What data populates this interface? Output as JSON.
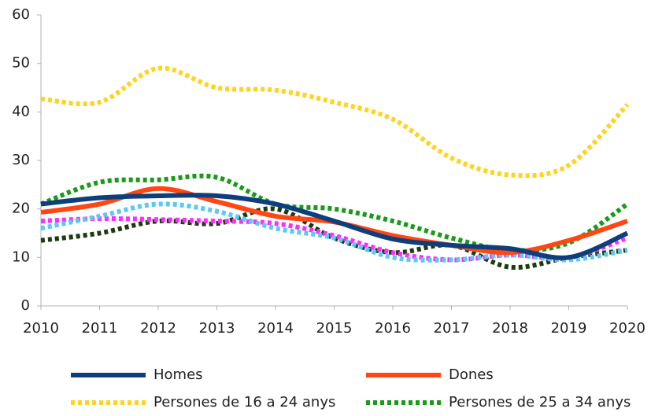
{
  "chart_data": {
    "type": "line",
    "x": [
      2010,
      2011,
      2012,
      2013,
      2014,
      2015,
      2016,
      2017,
      2018,
      2019,
      2020
    ],
    "xlim": [
      2010,
      2020
    ],
    "xticks": [
      2010,
      2011,
      2012,
      2013,
      2014,
      2015,
      2016,
      2017,
      2018,
      2019,
      2020
    ],
    "ylim": [
      0,
      60
    ],
    "yticks": [
      0,
      10,
      20,
      30,
      40,
      50,
      60
    ],
    "grid": false,
    "series": [
      {
        "name": "Homes",
        "color": "#0f3e7c",
        "style": "solid",
        "values": [
          21,
          22.3,
          22.7,
          22.7,
          21,
          17.5,
          13.8,
          12.5,
          11.8,
          10,
          15
        ]
      },
      {
        "name": "Dones",
        "color": "#ff4613",
        "style": "solid",
        "values": [
          19.3,
          21,
          24.2,
          21.5,
          18.5,
          17.3,
          14.5,
          12.5,
          11,
          13.5,
          17.5
        ]
      },
      {
        "name": "Persones de 16 a 24 anys",
        "color": "#ffd320",
        "style": "dotted",
        "values": [
          42.7,
          42,
          49,
          45,
          44.5,
          42,
          38.5,
          30.5,
          27,
          29,
          41.5
        ]
      },
      {
        "name": "Persones de 25 a 34 anys",
        "color": "#1a9a1a",
        "style": "dotted",
        "values": [
          21,
          25.5,
          26,
          26.5,
          21,
          20,
          17.5,
          14,
          11.5,
          13,
          21
        ]
      },
      {
        "color": "#5bc8f5",
        "style": "dotted",
        "values": [
          16,
          18.5,
          21,
          19.5,
          16,
          14,
          10,
          9.5,
          10.5,
          9.5,
          11.5
        ]
      },
      {
        "color": "#ff2dff",
        "style": "dotted",
        "values": [
          17.5,
          18,
          17.8,
          17.5,
          17,
          14.5,
          11,
          9.5,
          10.5,
          10,
          14
        ]
      },
      {
        "color": "#1e3a10",
        "style": "dotted",
        "values": [
          13.5,
          15,
          17.5,
          17,
          20,
          14,
          11,
          12.5,
          8,
          10,
          11.5
        ]
      }
    ]
  }
}
